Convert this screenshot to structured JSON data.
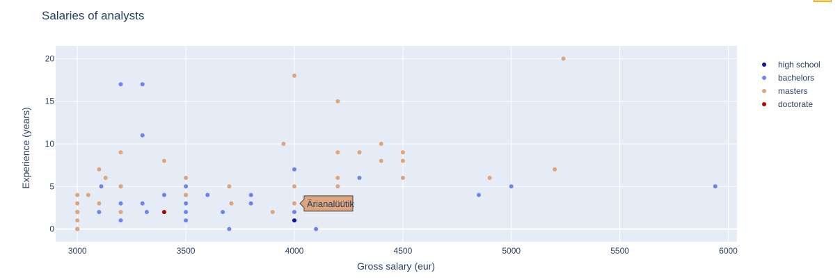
{
  "chart_data": {
    "type": "scatter",
    "title": "Salaries of analysts",
    "xlabel": "Gross salary (eur)",
    "ylabel": "Experience (years)",
    "xlim": [
      2900,
      6040
    ],
    "ylim": [
      -1.5,
      21.5
    ],
    "xticks": [
      3000,
      3500,
      4000,
      4500,
      5000,
      5500,
      6000
    ],
    "yticks": [
      0,
      5,
      10,
      15,
      20
    ],
    "grid": true,
    "legend_position": "right",
    "series": [
      {
        "name": "high school",
        "color": "#0d0dab",
        "points": [
          [
            4000,
            1
          ]
        ]
      },
      {
        "name": "bachelors",
        "color": "#6b84f0",
        "points": [
          [
            3000,
            0
          ],
          [
            3000,
            2
          ],
          [
            3100,
            2
          ],
          [
            3110,
            5
          ],
          [
            3200,
            17
          ],
          [
            3200,
            5
          ],
          [
            3200,
            3
          ],
          [
            3200,
            1
          ],
          [
            3300,
            17
          ],
          [
            3300,
            11
          ],
          [
            3300,
            3
          ],
          [
            3320,
            2
          ],
          [
            3400,
            4
          ],
          [
            3500,
            5
          ],
          [
            3500,
            4
          ],
          [
            3500,
            3
          ],
          [
            3500,
            2
          ],
          [
            3500,
            1
          ],
          [
            3600,
            4
          ],
          [
            3670,
            2
          ],
          [
            3700,
            0
          ],
          [
            3800,
            4
          ],
          [
            3800,
            3
          ],
          [
            4000,
            7
          ],
          [
            4000,
            2
          ],
          [
            4100,
            0
          ],
          [
            4300,
            6
          ],
          [
            4850,
            4
          ],
          [
            5000,
            5
          ],
          [
            5940,
            5
          ]
        ]
      },
      {
        "name": "masters",
        "color": "#dea57c",
        "points": [
          [
            3000,
            4
          ],
          [
            3000,
            3
          ],
          [
            3000,
            2
          ],
          [
            3000,
            1
          ],
          [
            3000,
            0
          ],
          [
            3050,
            4
          ],
          [
            3100,
            7
          ],
          [
            3100,
            3
          ],
          [
            3130,
            6
          ],
          [
            3200,
            9
          ],
          [
            3200,
            5
          ],
          [
            3200,
            2
          ],
          [
            3400,
            8
          ],
          [
            3500,
            6
          ],
          [
            3500,
            4
          ],
          [
            3700,
            5
          ],
          [
            3710,
            3
          ],
          [
            3900,
            2
          ],
          [
            3950,
            10
          ],
          [
            4000,
            18
          ],
          [
            4000,
            5
          ],
          [
            4000,
            3
          ],
          [
            4200,
            15
          ],
          [
            4200,
            9
          ],
          [
            4200,
            6
          ],
          [
            4200,
            5
          ],
          [
            4300,
            9
          ],
          [
            4400,
            10
          ],
          [
            4400,
            8
          ],
          [
            4500,
            9
          ],
          [
            4500,
            8
          ],
          [
            4500,
            6
          ],
          [
            4900,
            6
          ],
          [
            5200,
            7
          ],
          [
            5240,
            20
          ]
        ]
      },
      {
        "name": "doctorate",
        "color": "#b30000",
        "points": [
          [
            3400,
            2
          ]
        ]
      }
    ],
    "hover_label": {
      "text": "Ärianalüütik",
      "x": 4000,
      "y": 3,
      "color": "#dea57c"
    }
  }
}
